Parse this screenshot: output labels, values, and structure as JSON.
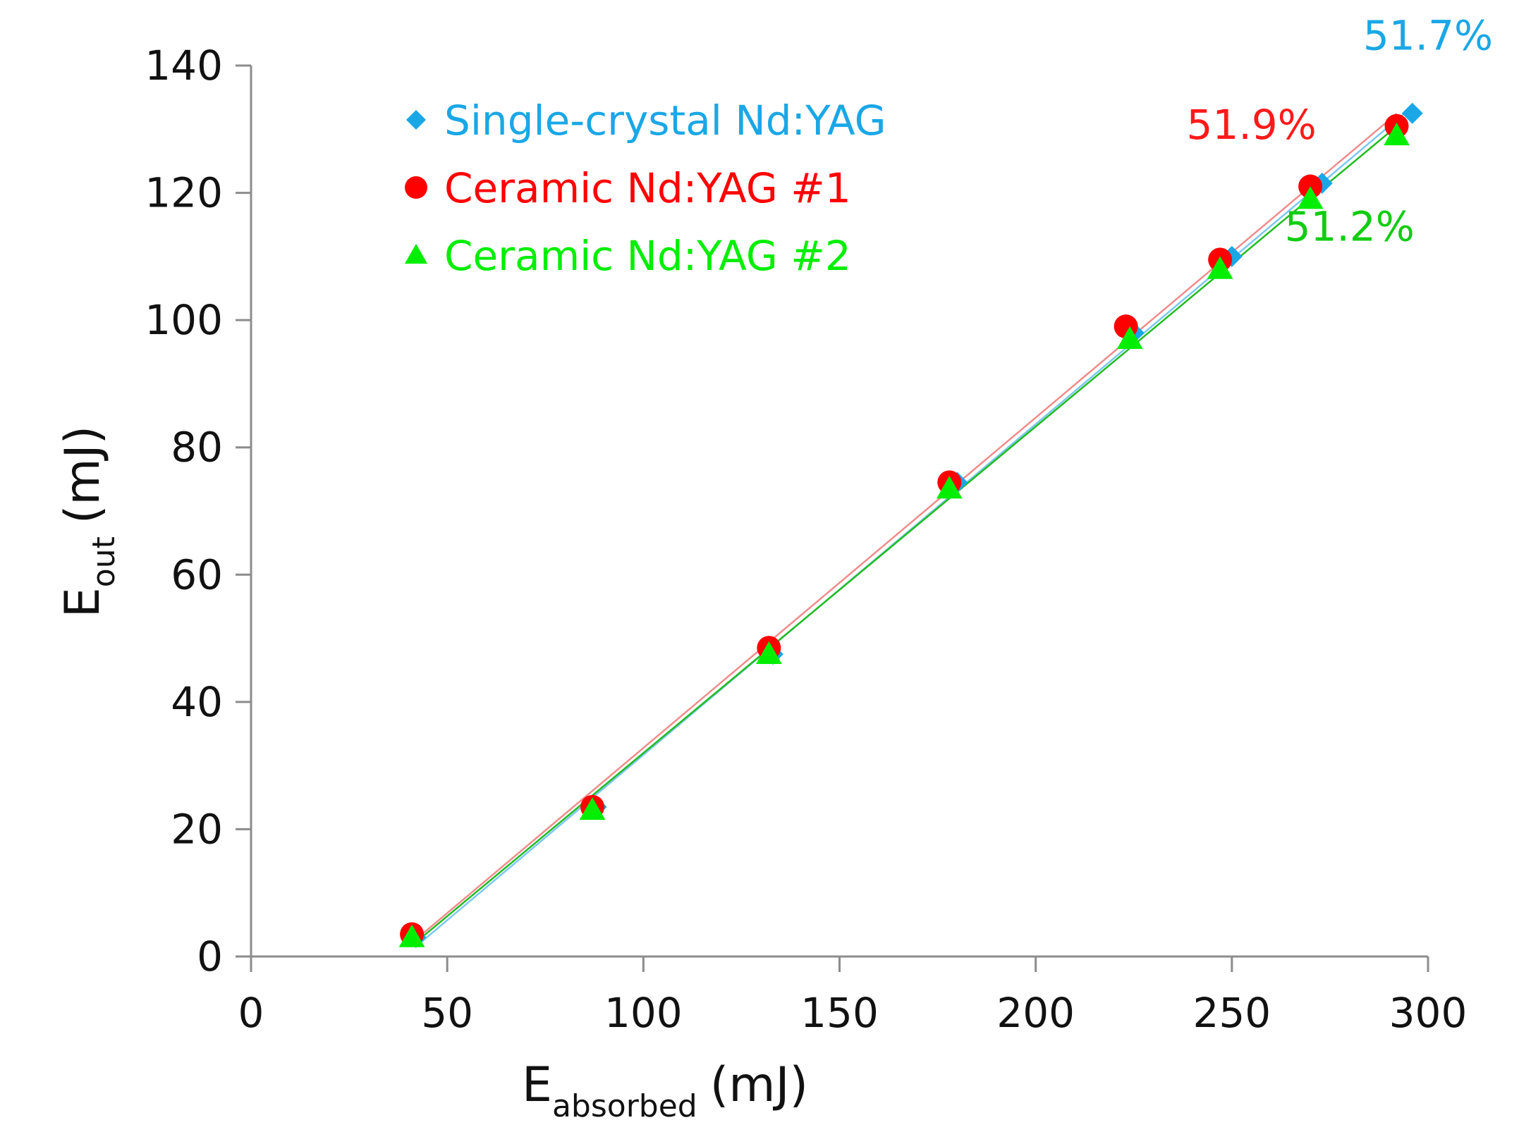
{
  "chart_data": {
    "type": "scatter",
    "title": "",
    "xlabel": {
      "main": "E",
      "sub": "absorbed",
      "unit": "(mJ)"
    },
    "ylabel": {
      "main": "E",
      "sub": "out",
      "unit": "(mJ)"
    },
    "xlim": [
      0,
      300
    ],
    "ylim": [
      0,
      140
    ],
    "xticks": [
      0,
      50,
      100,
      150,
      200,
      250,
      300
    ],
    "yticks": [
      0,
      20,
      40,
      60,
      80,
      100,
      120,
      140
    ],
    "grid": false,
    "legend_position": "top-left",
    "series": [
      {
        "name": "Single-crystal Nd:YAG",
        "marker": "diamond",
        "color": "#1aa7e6",
        "fit_color": "#7cc8f0",
        "x": [
          42,
          88,
          133,
          180,
          225,
          250,
          273,
          296
        ],
        "y": [
          3,
          23.5,
          47.5,
          74.5,
          98,
          110,
          121.5,
          132.5
        ],
        "slope_label": "51.7%"
      },
      {
        "name": "Ceramic Nd:YAG #1",
        "marker": "circle",
        "color": "#ff0000",
        "fit_color": "#f08c8c",
        "x": [
          41,
          87,
          132,
          178,
          223,
          247,
          270,
          292
        ],
        "y": [
          3.5,
          23.5,
          48.5,
          74.5,
          99,
          109.5,
          121,
          130.5
        ],
        "slope_label": "51.9%"
      },
      {
        "name": "Ceramic Nd:YAG #2",
        "marker": "triangle",
        "color": "#00ee00",
        "fit_color": "#22bb22",
        "x": [
          41,
          87,
          132,
          178,
          224,
          247,
          270,
          292
        ],
        "y": [
          3,
          23,
          47.5,
          73.5,
          97,
          108,
          119,
          129
        ],
        "slope_label": "51.2%"
      }
    ],
    "annotations": [
      {
        "text": "51.7%",
        "color": "#1aa7e6",
        "x": 300,
        "y": 142.5
      },
      {
        "text": "51.9%",
        "color": "#ff1a1a",
        "x": 255,
        "y": 128.5
      },
      {
        "text": "51.2%",
        "color": "#11cc11",
        "x": 280,
        "y": 112.5
      }
    ]
  }
}
